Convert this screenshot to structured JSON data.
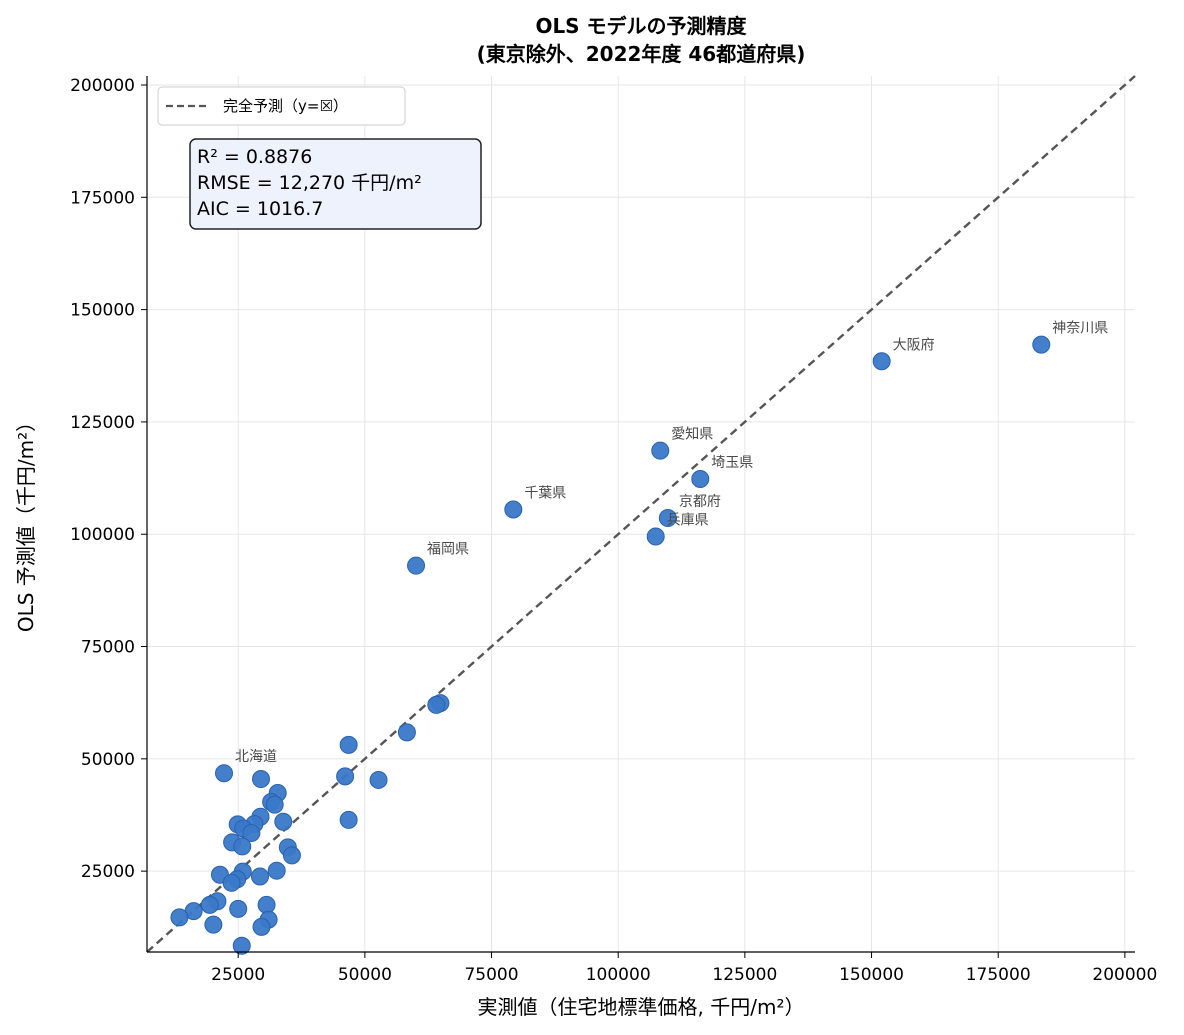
{
  "chart_data": {
    "type": "scatter",
    "title_lines": [
      "OLS モデルの予測精度",
      "(東京除外、2022年度 46都道府県)"
    ],
    "xlabel": "実測値（住宅地標準価格, 千円/m²）",
    "ylabel": "OLS 予測値（千円/m²）",
    "xlim": [
      7000,
      202000
    ],
    "ylim": [
      7000,
      202000
    ],
    "xticks": [
      25000,
      50000,
      75000,
      100000,
      125000,
      150000,
      175000,
      200000
    ],
    "yticks": [
      25000,
      50000,
      75000,
      100000,
      125000,
      150000,
      175000,
      200000
    ],
    "grid": true,
    "legend": {
      "position": "top-left",
      "label": "完全予測（y=☒）"
    },
    "stats": [
      "R² = 0.8876",
      "RMSE = 12,270 千円/m²",
      "AIC = 1016.7"
    ],
    "colors": {
      "points": "#3a78c8",
      "points_edge": "#2a62ad",
      "reference_line": "#555555",
      "stats_box_fill": "#eef2fd",
      "grid": "#e6e6e6"
    },
    "points": [
      {
        "x": 183500,
        "y": 142200,
        "label": "神奈川県"
      },
      {
        "x": 152000,
        "y": 138500,
        "label": "大阪府"
      },
      {
        "x": 108300,
        "y": 118600,
        "label": "愛知県"
      },
      {
        "x": 116200,
        "y": 112300,
        "label": "埼玉県"
      },
      {
        "x": 79300,
        "y": 105500,
        "label": "千葉県"
      },
      {
        "x": 109800,
        "y": 103600,
        "label": "京都府"
      },
      {
        "x": 107400,
        "y": 99500,
        "label": "兵庫県"
      },
      {
        "x": 60100,
        "y": 93000,
        "label": "福岡県"
      },
      {
        "x": 22200,
        "y": 46800,
        "label": "北海道"
      },
      {
        "x": 64900,
        "y": 62400
      },
      {
        "x": 64100,
        "y": 62000
      },
      {
        "x": 58300,
        "y": 55900
      },
      {
        "x": 46800,
        "y": 53100
      },
      {
        "x": 46100,
        "y": 46100
      },
      {
        "x": 52700,
        "y": 45300
      },
      {
        "x": 46800,
        "y": 36400
      },
      {
        "x": 29500,
        "y": 45500
      },
      {
        "x": 32800,
        "y": 42400
      },
      {
        "x": 31500,
        "y": 40400
      },
      {
        "x": 32200,
        "y": 39800
      },
      {
        "x": 29400,
        "y": 37100
      },
      {
        "x": 28200,
        "y": 35500
      },
      {
        "x": 24900,
        "y": 35400
      },
      {
        "x": 26000,
        "y": 34500
      },
      {
        "x": 27600,
        "y": 33500
      },
      {
        "x": 33900,
        "y": 36000
      },
      {
        "x": 23800,
        "y": 31400
      },
      {
        "x": 25800,
        "y": 30500
      },
      {
        "x": 34800,
        "y": 30300
      },
      {
        "x": 35600,
        "y": 28500
      },
      {
        "x": 32600,
        "y": 25100
      },
      {
        "x": 25900,
        "y": 24900
      },
      {
        "x": 21400,
        "y": 24200
      },
      {
        "x": 29300,
        "y": 23800
      },
      {
        "x": 24800,
        "y": 23200
      },
      {
        "x": 23700,
        "y": 22400
      },
      {
        "x": 20900,
        "y": 18300
      },
      {
        "x": 19400,
        "y": 17500
      },
      {
        "x": 30600,
        "y": 17500
      },
      {
        "x": 25000,
        "y": 16600
      },
      {
        "x": 16200,
        "y": 16100
      },
      {
        "x": 13400,
        "y": 14700
      },
      {
        "x": 31000,
        "y": 14200
      },
      {
        "x": 20100,
        "y": 13100
      },
      {
        "x": 29600,
        "y": 12600
      },
      {
        "x": 25700,
        "y": 8400
      }
    ]
  }
}
